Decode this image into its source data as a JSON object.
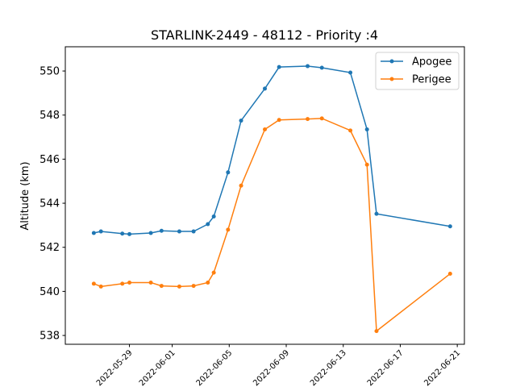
{
  "chart_data": {
    "type": "line",
    "title": "STARLINK-2449 - 48112 - Priority :4",
    "xlabel": "",
    "ylabel": "Altitude (km)",
    "xlim": [
      "2022-05-24T12:00",
      "2022-06-21T12:00"
    ],
    "ylim": [
      537.6,
      551.1
    ],
    "yticks": [
      538,
      540,
      542,
      544,
      546,
      548,
      550
    ],
    "xticks": [
      "2022-05-29",
      "2022-06-01",
      "2022-06-05",
      "2022-06-09",
      "2022-06-13",
      "2022-06-17",
      "2022-06-21"
    ],
    "grid": false,
    "legend": "top-right",
    "series": [
      {
        "name": "Apogee",
        "color": "#1f77b4",
        "points": [
          [
            "2022-05-26T12:00",
            542.65
          ],
          [
            "2022-05-27T00:00",
            542.72
          ],
          [
            "2022-05-28T12:00",
            542.62
          ],
          [
            "2022-05-29T00:00",
            542.6
          ],
          [
            "2022-05-30T12:00",
            542.65
          ],
          [
            "2022-05-31T06:00",
            542.75
          ],
          [
            "2022-06-01T12:00",
            542.72
          ],
          [
            "2022-06-02T12:00",
            542.72
          ],
          [
            "2022-06-03T12:00",
            543.05
          ],
          [
            "2022-06-03T22:00",
            543.4
          ],
          [
            "2022-06-04T22:00",
            545.4
          ],
          [
            "2022-06-05T20:00",
            547.75
          ],
          [
            "2022-06-07T12:00",
            549.2
          ],
          [
            "2022-06-08T12:00",
            550.18
          ],
          [
            "2022-06-10T12:00",
            550.22
          ],
          [
            "2022-06-11T12:00",
            550.15
          ],
          [
            "2022-06-13T12:00",
            549.93
          ],
          [
            "2022-06-14T16:00",
            547.35
          ],
          [
            "2022-06-15T08:00",
            543.52
          ],
          [
            "2022-06-20T12:00",
            542.95
          ]
        ]
      },
      {
        "name": "Perigee",
        "color": "#ff7f0e",
        "points": [
          [
            "2022-05-26T12:00",
            540.35
          ],
          [
            "2022-05-27T00:00",
            540.22
          ],
          [
            "2022-05-28T12:00",
            540.35
          ],
          [
            "2022-05-29T00:00",
            540.4
          ],
          [
            "2022-05-30T12:00",
            540.4
          ],
          [
            "2022-05-31T06:00",
            540.25
          ],
          [
            "2022-06-01T12:00",
            540.22
          ],
          [
            "2022-06-02T12:00",
            540.25
          ],
          [
            "2022-06-03T12:00",
            540.4
          ],
          [
            "2022-06-03T22:00",
            540.85
          ],
          [
            "2022-06-04T22:00",
            542.8
          ],
          [
            "2022-06-05T20:00",
            544.8
          ],
          [
            "2022-06-07T12:00",
            547.35
          ],
          [
            "2022-06-08T12:00",
            547.78
          ],
          [
            "2022-06-10T12:00",
            547.82
          ],
          [
            "2022-06-11T12:00",
            547.85
          ],
          [
            "2022-06-13T12:00",
            547.3
          ],
          [
            "2022-06-14T16:00",
            545.75
          ],
          [
            "2022-06-15T08:00",
            538.2
          ],
          [
            "2022-06-20T12:00",
            540.8
          ]
        ]
      }
    ]
  }
}
